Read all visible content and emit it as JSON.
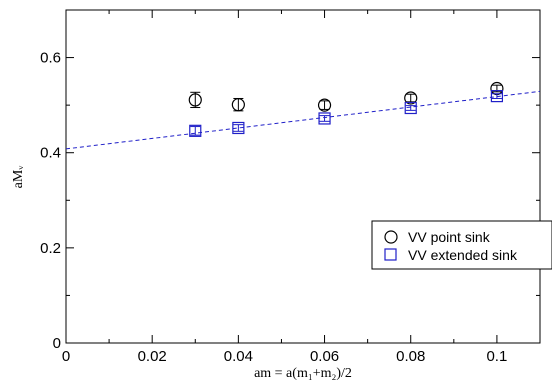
{
  "chart_data": {
    "type": "scatter",
    "xlabel": "am = a(m₁+m₂)/2",
    "ylabel": "aMᵥ",
    "xlim": [
      0,
      0.11
    ],
    "ylim": [
      0,
      0.7
    ],
    "x_ticks": [
      "0",
      "0.02",
      "0.04",
      "0.06",
      "0.08",
      "0.1"
    ],
    "x_tick_values": [
      0,
      0.02,
      0.04,
      0.06,
      0.08,
      0.1
    ],
    "y_ticks": [
      "0",
      "0.2",
      "0.4",
      "0.6"
    ],
    "y_tick_values": [
      0,
      0.2,
      0.4,
      0.6
    ],
    "grid": false,
    "legend_position": "right",
    "series": [
      {
        "name": "VV point sink",
        "marker": "circle",
        "color": "#000000",
        "x": [
          0.03,
          0.04,
          0.06,
          0.08,
          0.1
        ],
        "y": [
          0.511,
          0.501,
          0.5,
          0.515,
          0.535
        ],
        "err": [
          0.016,
          0.013,
          0.009,
          0.008,
          0.007
        ]
      },
      {
        "name": "VV extended sink",
        "marker": "square",
        "color": "#1f1fc8",
        "x": [
          0.03,
          0.04,
          0.06,
          0.08,
          0.1
        ],
        "y": [
          0.446,
          0.452,
          0.472,
          0.494,
          0.519
        ],
        "err": [
          0.009,
          0.007,
          0.006,
          0.005,
          0.005
        ]
      }
    ],
    "fit_line": {
      "color": "#1f1fc8",
      "style": "dashed",
      "x": [
        0,
        0.11
      ],
      "y": [
        0.408,
        0.529
      ]
    }
  }
}
